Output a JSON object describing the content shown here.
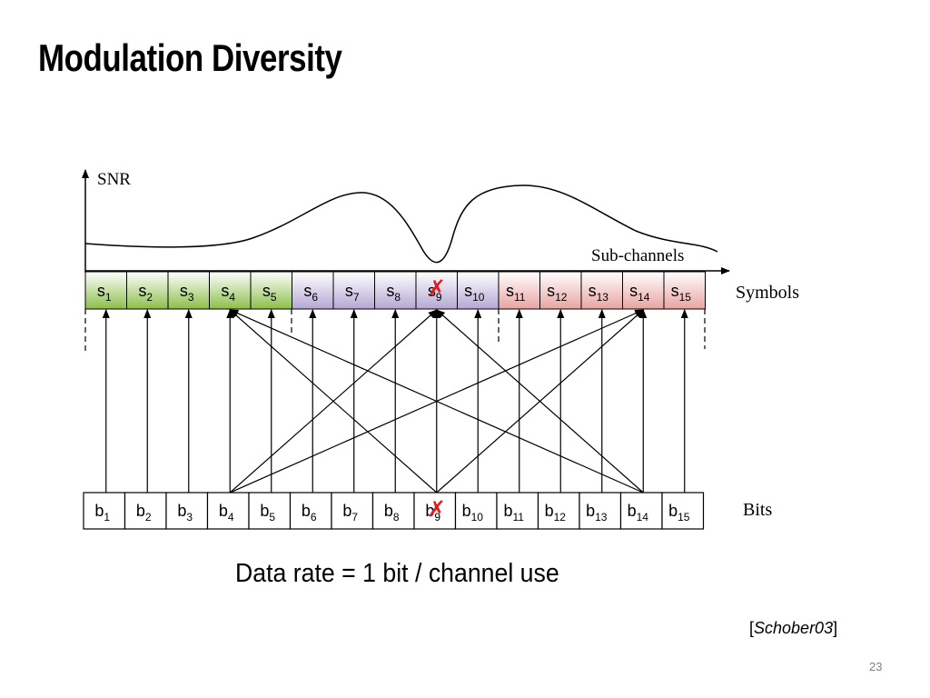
{
  "slide": {
    "title": "Modulation Diversity",
    "page_number": "23"
  },
  "diagram": {
    "y_axis_label": "SNR",
    "x_axis_label": "Sub-channels",
    "symbols_row_label": "Symbols",
    "bits_row_label": "Bits",
    "symbols": [
      "1",
      "2",
      "3",
      "4",
      "5",
      "6",
      "7",
      "8",
      "9",
      "10",
      "11",
      "12",
      "13",
      "14",
      "15"
    ],
    "bits": [
      "1",
      "2",
      "3",
      "4",
      "5",
      "6",
      "7",
      "8",
      "9",
      "10",
      "11",
      "12",
      "13",
      "14",
      "15"
    ],
    "symbol_groups": [
      {
        "cells": [
          1,
          5
        ],
        "color": "#8cbf4a"
      },
      {
        "cells": [
          6,
          10
        ],
        "color": "#b4a8d4"
      },
      {
        "cells": [
          11,
          15
        ],
        "color": "#e8a4a2"
      }
    ],
    "failed_index": 9,
    "fail_mark_color": "#e21a1a"
  },
  "caption": "Data rate = 1 bit / channel use",
  "citation": {
    "open": "[",
    "ref": "Schober03",
    "close": "]"
  }
}
